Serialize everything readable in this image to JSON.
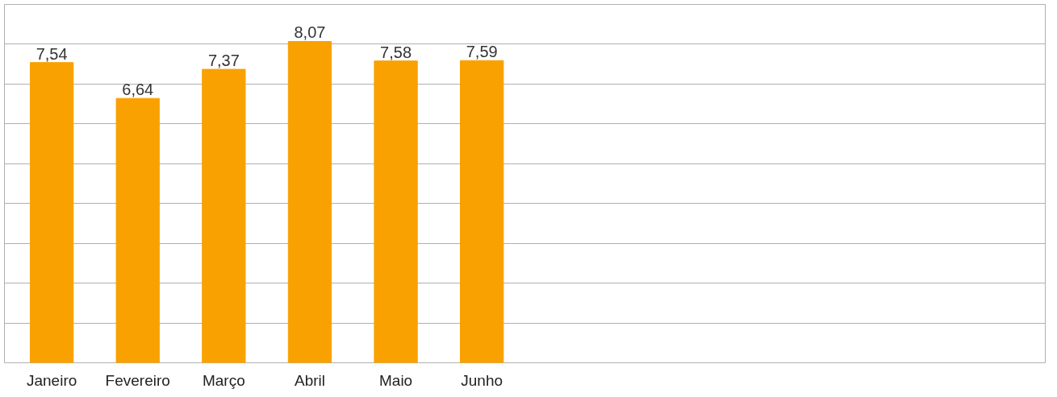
{
  "chart_data": {
    "type": "bar",
    "categories": [
      "Janeiro",
      "Fevereiro",
      "Março",
      "Abril",
      "Maio",
      "Junho",
      null,
      null,
      null,
      null,
      null,
      null
    ],
    "values": [
      7.54,
      6.64,
      7.37,
      8.07,
      7.58,
      7.59,
      null,
      null,
      null,
      null,
      null,
      null
    ],
    "value_labels": [
      "7,54",
      "6,64",
      "7,37",
      "8,07",
      "7,58",
      "7,59",
      null,
      null,
      null,
      null,
      null,
      null
    ],
    "color": "#f9a100",
    "ylim": [
      0,
      9
    ],
    "yticks": [
      {
        "value": 0,
        "label": null
      },
      {
        "value": 1,
        "label": null
      },
      {
        "value": 2,
        "label": null
      },
      {
        "value": 3,
        "label": null
      },
      {
        "value": 4,
        "label": null
      },
      {
        "value": 5,
        "label": null
      },
      {
        "value": 6,
        "label": null
      },
      {
        "value": 7,
        "label": null
      },
      {
        "value": 8,
        "label": null
      },
      {
        "value": 9,
        "label": null
      }
    ],
    "tick_labels": "x",
    "grid": "y"
  }
}
